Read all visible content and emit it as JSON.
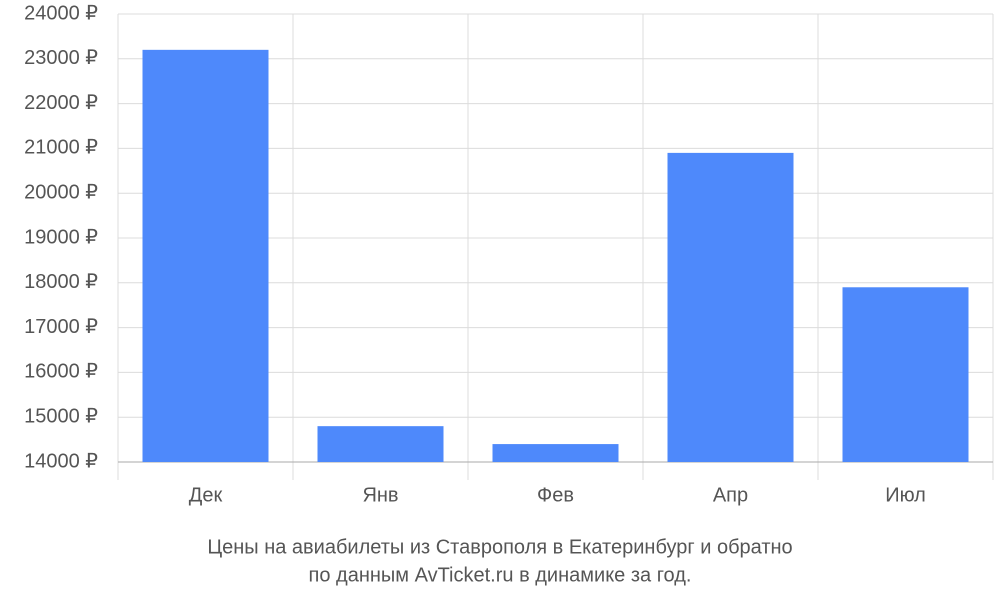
{
  "chart_data": {
    "type": "bar",
    "title": [
      "Цены на авиабилеты из Ставрополя в Екатеринбург и обратно",
      "по данным AvTicket.ru в динамике за год."
    ],
    "categories": [
      "Дек",
      "Янв",
      "Фев",
      "Апр",
      "Июл"
    ],
    "values": [
      23200,
      14800,
      14400,
      20900,
      17900
    ],
    "color": "#4e89fb",
    "ylim": [
      14000,
      24000
    ],
    "yticks": [
      {
        "value": 14000,
        "label": "14000 ₽"
      },
      {
        "value": 15000,
        "label": "15000 ₽"
      },
      {
        "value": 16000,
        "label": "16000 ₽"
      },
      {
        "value": 17000,
        "label": "17000 ₽"
      },
      {
        "value": 18000,
        "label": "18000 ₽"
      },
      {
        "value": 19000,
        "label": "19000 ₽"
      },
      {
        "value": 20000,
        "label": "20000 ₽"
      },
      {
        "value": 21000,
        "label": "21000 ₽"
      },
      {
        "value": 22000,
        "label": "22000 ₽"
      },
      {
        "value": 23000,
        "label": "23000 ₽"
      },
      {
        "value": 24000,
        "label": "24000 ₽"
      }
    ],
    "grid": true
  }
}
